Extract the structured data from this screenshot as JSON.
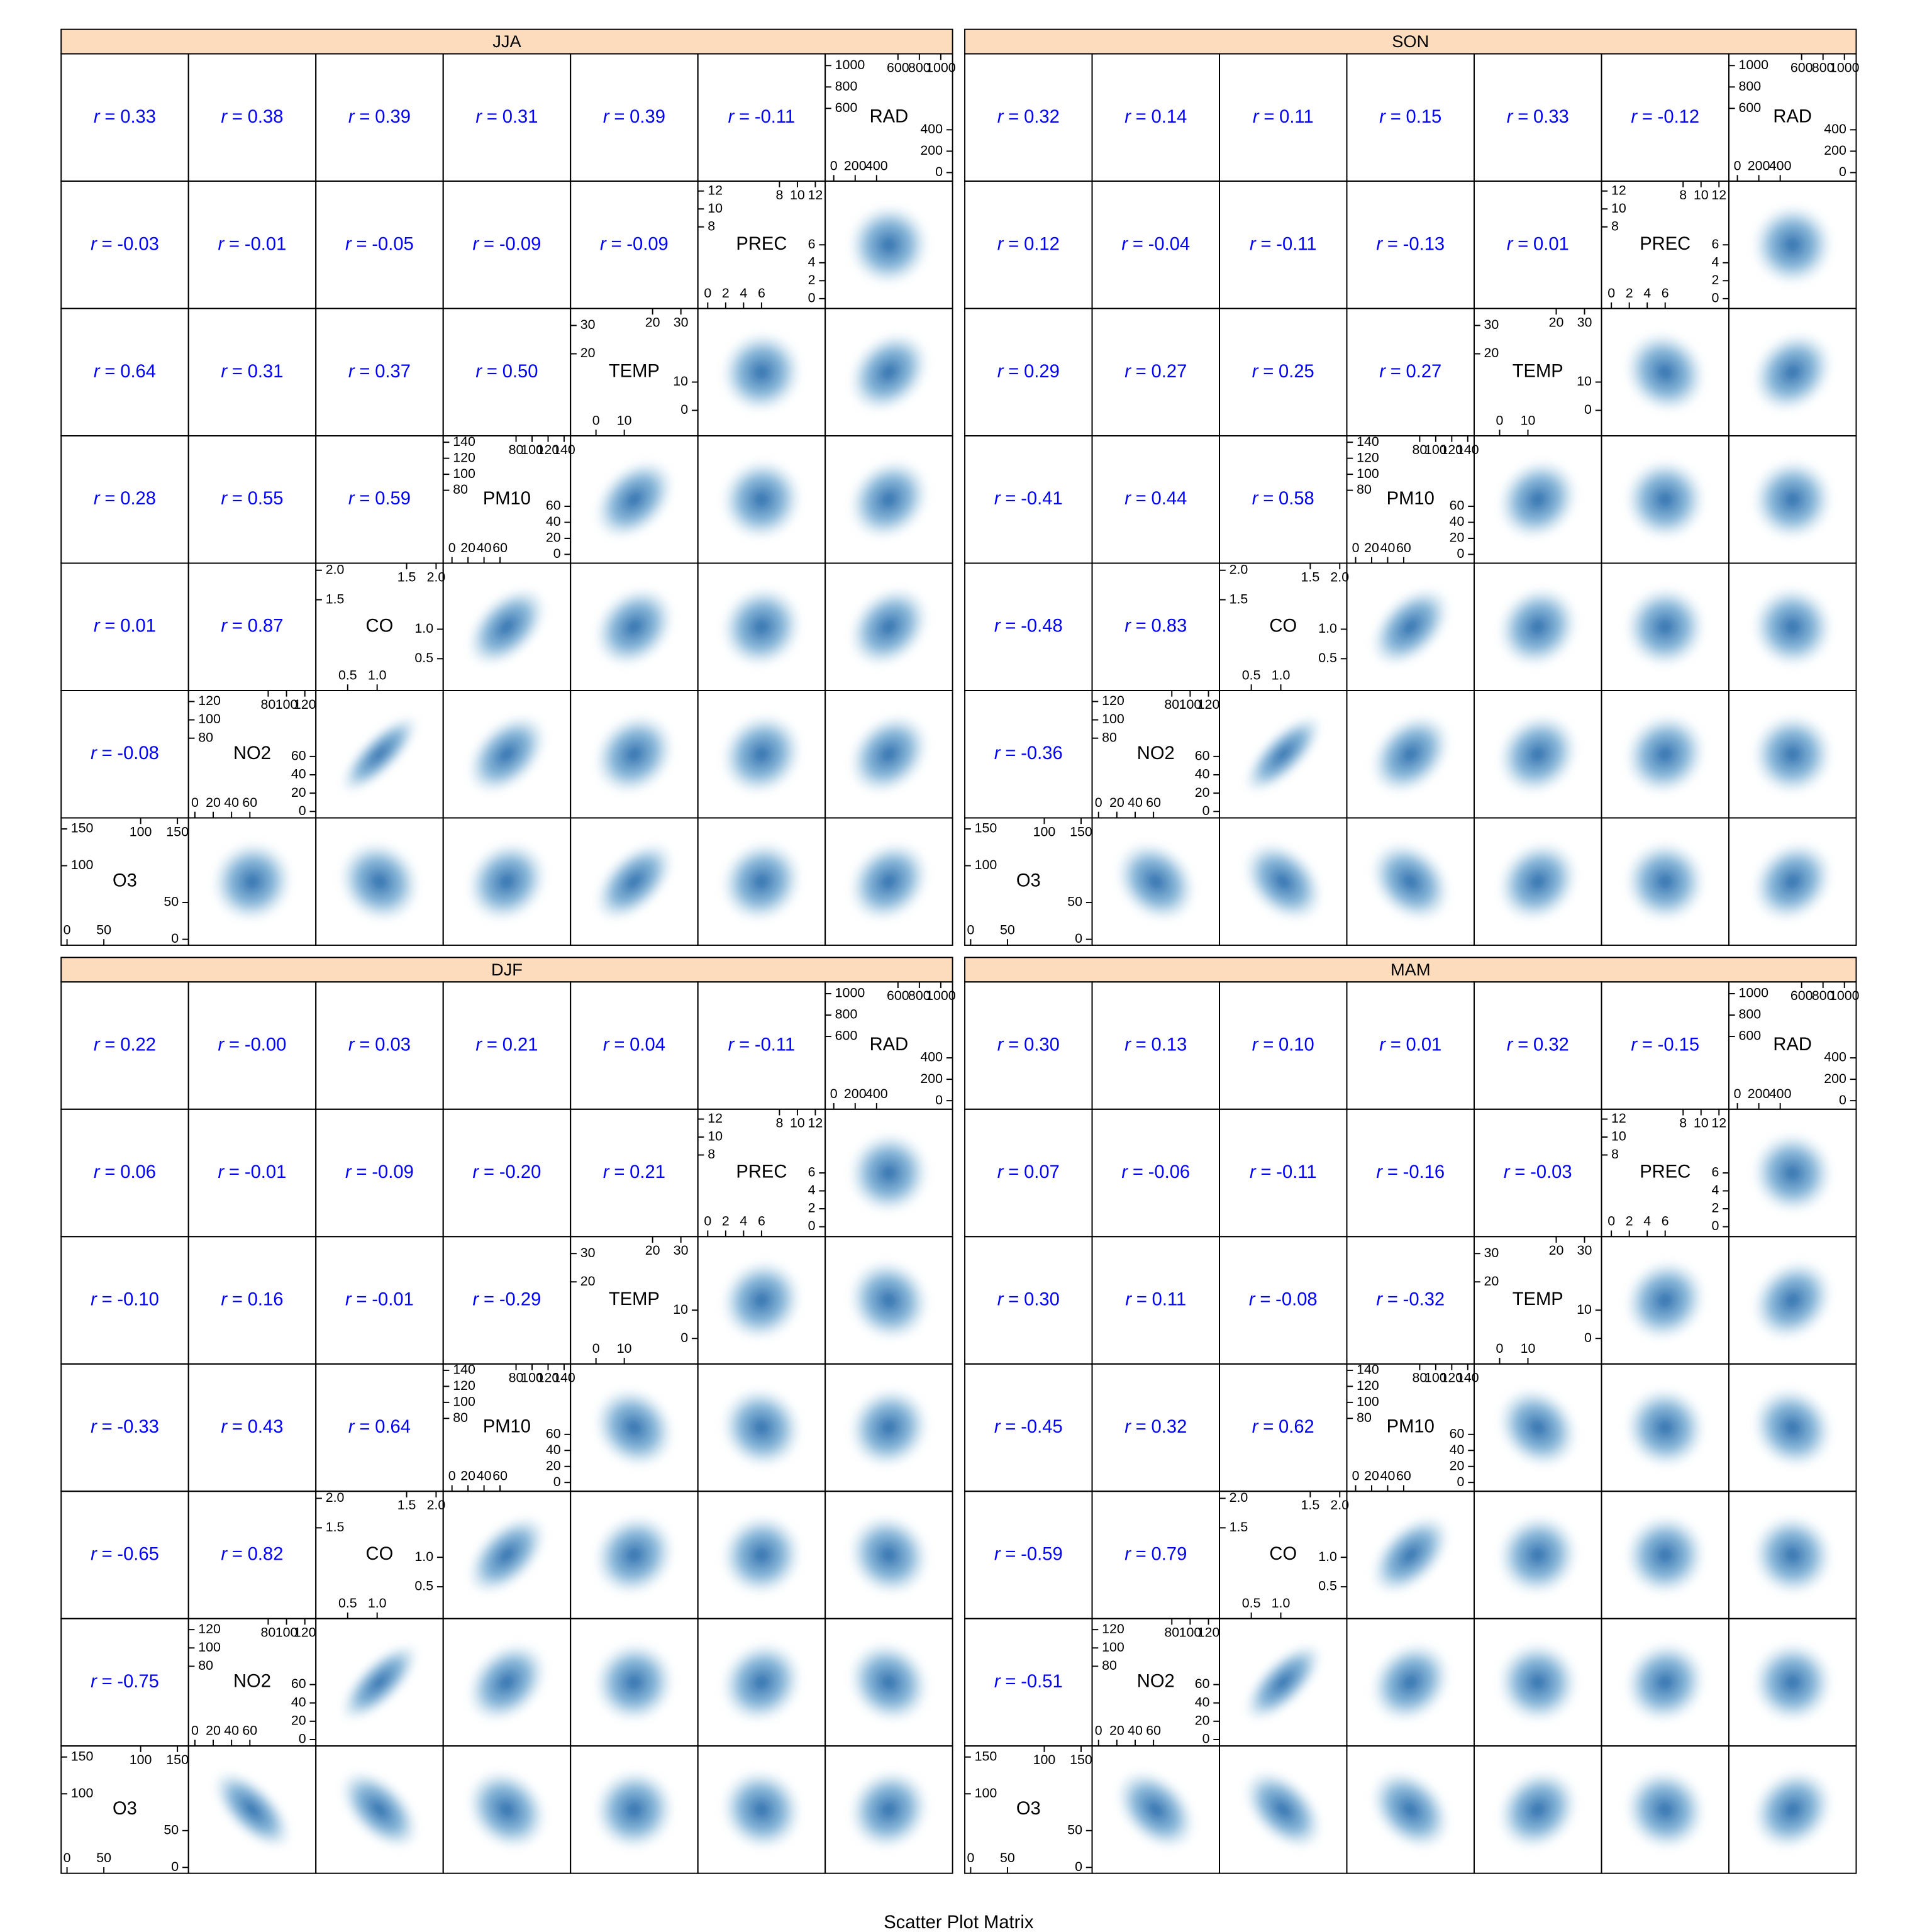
{
  "chart_data": {
    "type": "splom",
    "title": "Scatter Plot Matrix",
    "stat_label": "r",
    "stat_sep": "=",
    "variables": [
      {
        "name": "O3",
        "lim": [
          -8,
          165
        ],
        "ticks": [
          0,
          50,
          100,
          150
        ]
      },
      {
        "name": "NO2",
        "lim": [
          -7,
          132
        ],
        "ticks": [
          0,
          20,
          40,
          60,
          80,
          100,
          120
        ]
      },
      {
        "name": "CO",
        "lim": [
          -0.04,
          2.12
        ],
        "ticks": [
          0.5,
          {
            "value": 1,
            "label": "1.0"
          },
          1.5,
          {
            "value": 2,
            "label": "2.0"
          }
        ]
      },
      {
        "name": "PM10",
        "lim": [
          -11,
          148
        ],
        "ticks": [
          0,
          20,
          40,
          60,
          80,
          100,
          120,
          140
        ]
      },
      {
        "name": "TEMP",
        "lim": [
          -9,
          36
        ],
        "ticks": [
          0,
          10,
          20,
          30
        ]
      },
      {
        "name": "PREC",
        "lim": [
          -1.1,
          13.1
        ],
        "ticks": [
          0,
          2,
          4,
          6,
          8,
          10,
          12
        ]
      },
      {
        "name": "RAD",
        "lim": [
          -80,
          1110
        ],
        "ticks": [
          0,
          200,
          400,
          600,
          800,
          1000
        ]
      }
    ],
    "panels": [
      {
        "label": "JJA",
        "r": [
          [
            -0.08
          ],
          [
            0.01,
            0.87
          ],
          [
            0.28,
            0.55,
            0.59
          ],
          [
            0.64,
            0.31,
            0.37,
            0.5
          ],
          [
            -0.03,
            -0.01,
            -0.05,
            -0.09,
            -0.09
          ],
          [
            0.33,
            0.38,
            0.39,
            0.31,
            0.39,
            -0.11
          ]
        ],
        "r_labels": [
          [
            "-0.08"
          ],
          [
            "0.01",
            "0.87"
          ],
          [
            "0.28",
            "0.55",
            "0.59"
          ],
          [
            "0.64",
            "0.31",
            "0.37",
            "0.50"
          ],
          [
            "-0.03",
            "-0.01",
            "-0.05",
            "-0.09",
            "-0.09"
          ],
          [
            "0.33",
            "0.38",
            "0.39",
            "0.31",
            "0.39",
            "-0.11"
          ]
        ]
      },
      {
        "label": "SON",
        "r": [
          [
            -0.36
          ],
          [
            -0.48,
            0.83
          ],
          [
            -0.41,
            0.44,
            0.58
          ],
          [
            0.29,
            0.27,
            0.25,
            0.27
          ],
          [
            0.12,
            -0.04,
            -0.11,
            -0.13,
            0.01
          ],
          [
            0.32,
            0.14,
            0.11,
            0.15,
            0.33,
            -0.12
          ]
        ],
        "r_labels": [
          [
            "-0.36"
          ],
          [
            "-0.48",
            "0.83"
          ],
          [
            "-0.41",
            "0.44",
            "0.58"
          ],
          [
            "0.29",
            "0.27",
            "0.25",
            "0.27"
          ],
          [
            "0.12",
            "-0.04",
            "-0.11",
            "-0.13",
            "0.01"
          ],
          [
            "0.32",
            "0.14",
            "0.11",
            "0.15",
            "0.33",
            "-0.12"
          ]
        ]
      },
      {
        "label": "DJF",
        "r": [
          [
            -0.75
          ],
          [
            -0.65,
            0.82
          ],
          [
            -0.33,
            0.43,
            0.64
          ],
          [
            -0.1,
            0.16,
            -0.01,
            -0.29
          ],
          [
            0.06,
            -0.01,
            -0.09,
            -0.2,
            0.21
          ],
          [
            0.22,
            0,
            0.03,
            0.21,
            0.04,
            -0.11
          ]
        ],
        "r_labels": [
          [
            "-0.75"
          ],
          [
            "-0.65",
            "0.82"
          ],
          [
            "-0.33",
            "0.43",
            "0.64"
          ],
          [
            "-0.10",
            "0.16",
            "-0.01",
            "-0.29"
          ],
          [
            "0.06",
            "-0.01",
            "-0.09",
            "-0.20",
            "0.21"
          ],
          [
            "0.22",
            "-0.00",
            "0.03",
            "0.21",
            "0.04",
            "-0.11"
          ]
        ]
      },
      {
        "label": "MAM",
        "r": [
          [
            -0.51
          ],
          [
            -0.59,
            0.79
          ],
          [
            -0.45,
            0.32,
            0.62
          ],
          [
            0.3,
            0.11,
            -0.08,
            -0.32
          ],
          [
            0.07,
            -0.06,
            -0.11,
            -0.16,
            -0.03
          ],
          [
            0.3,
            0.13,
            0.1,
            0.01,
            0.32,
            -0.15
          ]
        ],
        "r_labels": [
          [
            "-0.51"
          ],
          [
            "-0.59",
            "0.79"
          ],
          [
            "-0.45",
            "0.32",
            "0.62"
          ],
          [
            "0.30",
            "0.11",
            "-0.08",
            "-0.32"
          ],
          [
            "0.07",
            "-0.06",
            "-0.11",
            "-0.16",
            "-0.03"
          ],
          [
            "0.30",
            "0.13",
            "0.10",
            "0.01",
            "0.32",
            "-0.15"
          ]
        ]
      }
    ]
  }
}
